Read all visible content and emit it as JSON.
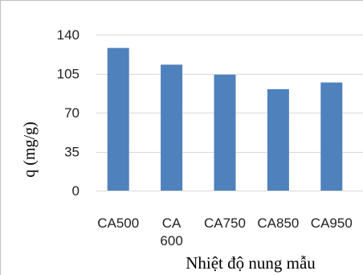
{
  "chart_data": {
    "type": "bar",
    "categories": [
      "CA500",
      "CA 600",
      "CA750",
      "CA850",
      "CA950"
    ],
    "category_label_lines": [
      [
        "CA500"
      ],
      [
        "CA",
        "600"
      ],
      [
        "CA750"
      ],
      [
        "CA850"
      ],
      [
        "CA950"
      ]
    ],
    "values": [
      128,
      113,
      104,
      91,
      97
    ],
    "xlabel": "Nhiệt độ nung mẫu",
    "ylabel": "q (mg/g)",
    "ylim": [
      0,
      140
    ],
    "yticks": [
      0,
      35,
      70,
      105,
      140
    ],
    "grid": true,
    "legend": "none",
    "bar_color": "#4f81bd",
    "grid_color": "#d9d9d9"
  }
}
